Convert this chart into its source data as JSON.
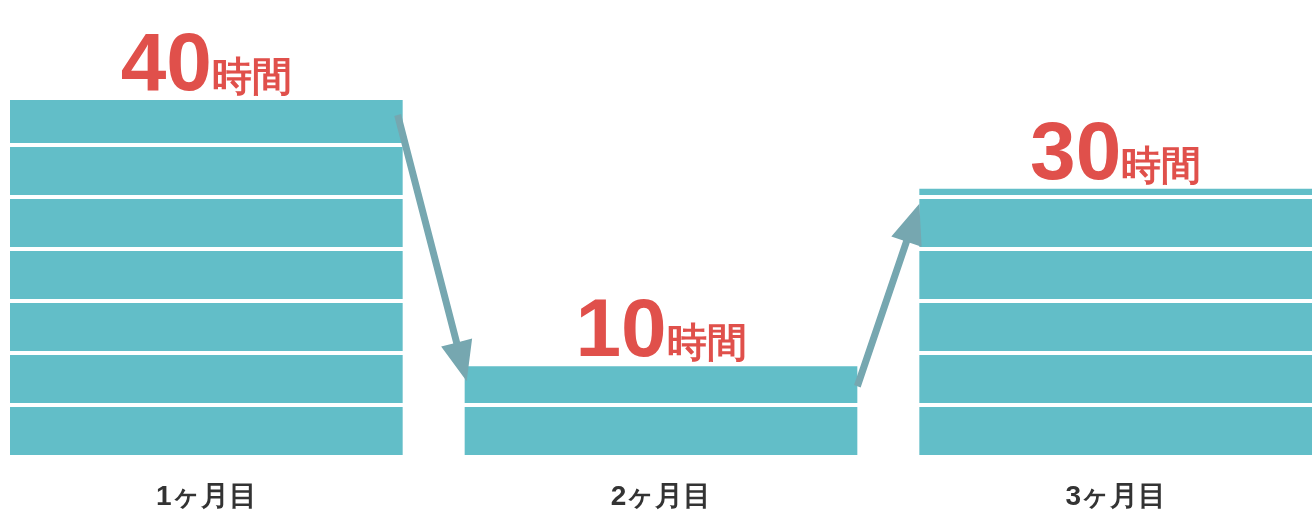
{
  "chart_data": {
    "type": "bar",
    "categories": [
      "1ヶ月目",
      "2ヶ月目",
      "3ヶ月目"
    ],
    "values": [
      40,
      10,
      30
    ],
    "value_labels": [
      "40時間",
      "10時間",
      "30時間"
    ],
    "color": "#62bec8"
  }
}
